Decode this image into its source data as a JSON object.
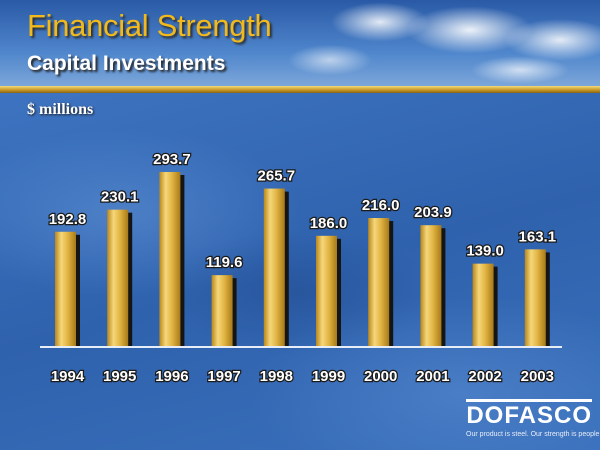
{
  "header": {
    "title": "Financial Strength",
    "subtitle": "Capital Investments",
    "unit_label": "$ millions"
  },
  "brand": {
    "name": "DOFASCO",
    "tagline": "Our product is steel. Our strength is people."
  },
  "colors": {
    "title": "#f2b91c",
    "bar_light": "#f5d77a",
    "bar_mid": "#d8a735",
    "bar_dark": "#a77a18",
    "bar_shadow": "#151515",
    "axis": "#e8eef7"
  },
  "chart_data": {
    "type": "bar",
    "title": "Capital Investments",
    "ylabel": "$ millions",
    "xlabel": "",
    "categories": [
      "1994",
      "1995",
      "1996",
      "1997",
      "1998",
      "1999",
      "2000",
      "2001",
      "2002",
      "2003"
    ],
    "values": [
      192.8,
      230.1,
      293.7,
      119.6,
      265.7,
      186.0,
      216.0,
      203.9,
      139.0,
      163.1
    ],
    "value_labels": [
      "192.8",
      "230.1",
      "293.7",
      "119.6",
      "265.7",
      "186.0",
      "216.0",
      "203.9",
      "139.0",
      "163.1"
    ],
    "ylim": [
      0,
      300
    ],
    "grid": false,
    "legend": "none"
  }
}
